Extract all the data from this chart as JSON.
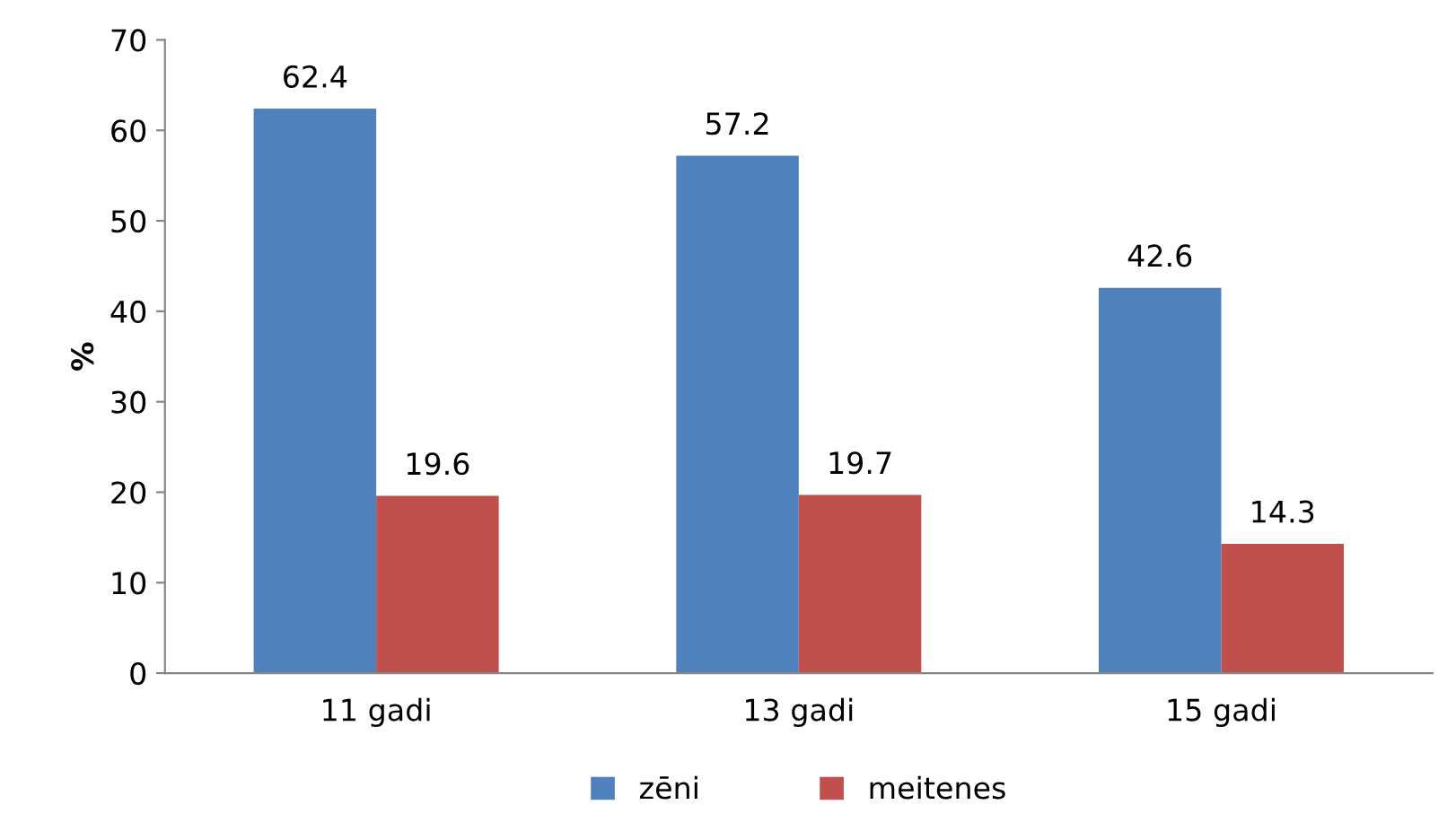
{
  "chart_data": {
    "type": "bar",
    "ylabel": "%",
    "categories": [
      "11 gadi",
      "13 gadi",
      "15 gadi"
    ],
    "series": [
      {
        "name": "zēni",
        "color": "#4f81bd",
        "values": [
          62.4,
          57.2,
          42.6
        ]
      },
      {
        "name": "meitenes",
        "color": "#c0504d",
        "values": [
          19.6,
          19.7,
          14.3
        ]
      }
    ],
    "ylim": [
      0,
      70
    ],
    "yticks": [
      0,
      10,
      20,
      30,
      40,
      50,
      60,
      70
    ],
    "grid": false,
    "legend": "bottom",
    "data_labels": true
  }
}
